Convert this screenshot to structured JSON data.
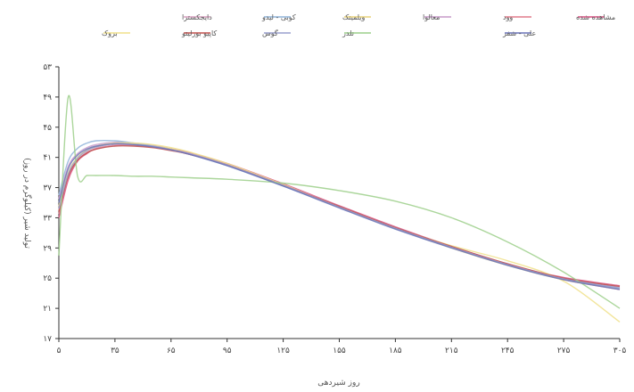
{
  "chart_data": {
    "type": "line",
    "title": "",
    "xlabel": "روز شیردهی",
    "ylabel": "تولید شیر (کیلوگرم در روز)",
    "xlim": [
      5,
      305
    ],
    "ylim": [
      17,
      53
    ],
    "x_ticks": [
      5,
      35,
      65,
      95,
      125,
      155,
      185,
      215,
      245,
      275,
      305
    ],
    "x_tick_labels": [
      "۵",
      "۳۵",
      "۶۵",
      "۹۵",
      "۱۲۵",
      "۱۵۵",
      "۱۸۵",
      "۲۱۵",
      "۲۴۵",
      "۲۷۵",
      "۳۰۵"
    ],
    "y_ticks": [
      17,
      21,
      25,
      29,
      33,
      37,
      41,
      45,
      49,
      53
    ],
    "y_tick_labels": [
      "۱۷",
      "۲۱",
      "۲۵",
      "۲۹",
      "۳۳",
      "۳۷",
      "۴۱",
      "۴۵",
      "۴۹",
      "۵۳"
    ],
    "grid": false,
    "legend_position": "top",
    "x": [
      5,
      10,
      15,
      20,
      25,
      35,
      45,
      55,
      65,
      75,
      95,
      125,
      155,
      185,
      215,
      245,
      275,
      305
    ],
    "series": [
      {
        "name": "مشاهده شده",
        "color": "#d94f80",
        "values": [
          33,
          38,
          40.5,
          41.5,
          42.2,
          42.6,
          42.7,
          42.5,
          42.1,
          41.6,
          40.2,
          37.5,
          34.6,
          31.8,
          29.2,
          26.8,
          25.1,
          24.0
        ]
      },
      {
        "name": "وود",
        "color": "#e07b8a",
        "values": [
          33.5,
          38.4,
          40.6,
          41.6,
          42.1,
          42.6,
          42.6,
          42.4,
          42.0,
          41.5,
          40.1,
          37.4,
          34.5,
          31.7,
          29.1,
          26.8,
          24.8,
          23.5
        ]
      },
      {
        "name": "معالوا",
        "color": "#c79ac9",
        "values": [
          35.5,
          39.8,
          41.5,
          42.3,
          42.7,
          43.0,
          42.9,
          42.6,
          42.1,
          41.5,
          40.0,
          37.3,
          34.4,
          31.7,
          29.1,
          26.8,
          24.9,
          23.8
        ]
      },
      {
        "name": "ویلمینک",
        "color": "#e8d27a",
        "values": [
          34,
          38.8,
          40.9,
          41.9,
          42.4,
          42.8,
          42.8,
          42.5,
          42.1,
          41.5,
          40.1,
          37.3,
          34.4,
          31.6,
          29.0,
          26.7,
          24.8,
          23.6
        ]
      },
      {
        "name": "کوبی - لیدو",
        "color": "#8fb3d9",
        "values": [
          36,
          40.5,
          42.2,
          42.9,
          43.2,
          43.2,
          42.9,
          42.5,
          42.0,
          41.4,
          39.9,
          37.2,
          34.4,
          31.6,
          29.1,
          26.8,
          24.9,
          23.6
        ]
      },
      {
        "name": "دایجکسترا",
        "color": "#d9a0c0",
        "values": [
          34,
          38.6,
          40.7,
          41.7,
          42.2,
          42.6,
          42.6,
          42.4,
          42.0,
          41.5,
          40.1,
          37.4,
          34.5,
          31.7,
          29.2,
          26.9,
          25.0,
          23.9
        ]
      },
      {
        "name": "بروک",
        "color": "#f0e08a",
        "values": [
          34.5,
          39.0,
          41.0,
          42.0,
          42.5,
          42.9,
          42.9,
          42.7,
          42.3,
          41.7,
          40.2,
          37.4,
          34.4,
          31.6,
          29.3,
          27.3,
          24.6,
          19.2
        ]
      },
      {
        "name": "کاپیو بورلیتو",
        "color": "#c0504d",
        "values": [
          33.8,
          38.5,
          40.6,
          41.6,
          42.1,
          42.5,
          42.5,
          42.3,
          41.9,
          41.4,
          40.0,
          37.3,
          34.5,
          31.7,
          29.2,
          26.9,
          25.0,
          23.9
        ]
      },
      {
        "name": "گوس",
        "color": "#9a9fce",
        "values": [
          34.2,
          38.8,
          40.9,
          41.9,
          42.4,
          42.8,
          42.7,
          42.5,
          42.0,
          41.5,
          40.0,
          37.3,
          34.4,
          31.6,
          29.1,
          26.8,
          24.9,
          23.7
        ]
      },
      {
        "name": "نلدر",
        "color": "#9ccf8a",
        "values": [
          28,
          49,
          38.5,
          38.6,
          38.6,
          38.6,
          38.5,
          38.5,
          38.4,
          38.3,
          38.1,
          37.6,
          36.6,
          35.2,
          33.0,
          29.8,
          25.8,
          21.0
        ]
      },
      {
        "name": "علی - شفر",
        "color": "#6a73b8",
        "values": [
          35,
          39.5,
          41.3,
          42.1,
          42.5,
          42.8,
          42.7,
          42.4,
          42.0,
          41.4,
          39.9,
          37.2,
          34.3,
          31.5,
          29.0,
          26.7,
          24.8,
          23.5
        ]
      }
    ]
  }
}
